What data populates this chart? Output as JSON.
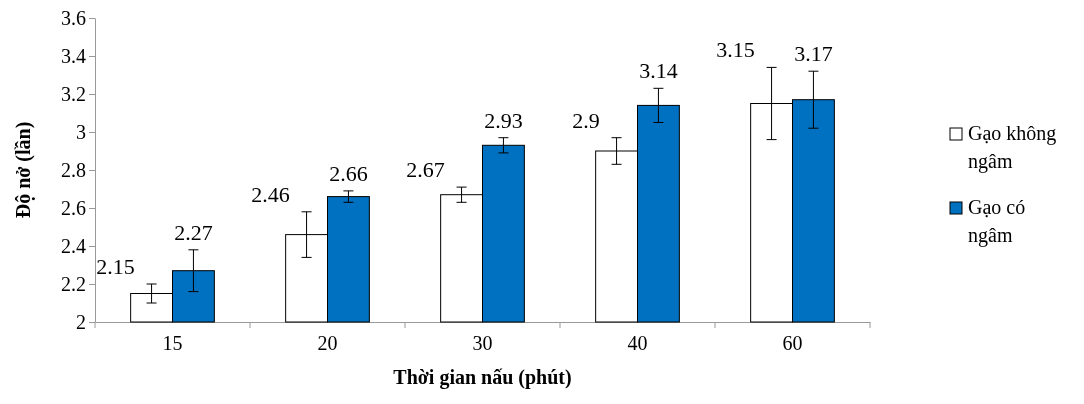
{
  "chart_data": {
    "type": "bar",
    "xlabel": "Thời gian nấu (phút)",
    "ylabel": "Độ nở (lần)",
    "categories": [
      "15",
      "20",
      "30",
      "40",
      "60"
    ],
    "series": [
      {
        "name": "Gạo không ngâm",
        "color": "#ffffff",
        "values": [
          2.15,
          2.46,
          2.67,
          2.9,
          3.15
        ],
        "errors": [
          0.05,
          0.12,
          0.04,
          0.07,
          0.19
        ]
      },
      {
        "name": "Gạo có ngâm",
        "color": "#0070c0",
        "values": [
          2.27,
          2.66,
          2.93,
          3.14,
          3.17
        ],
        "errors": [
          0.11,
          0.03,
          0.04,
          0.09,
          0.15
        ]
      }
    ],
    "ylim": [
      2,
      3.6
    ],
    "yticks": [
      2,
      2.2,
      2.4,
      2.6,
      2.8,
      3,
      3.2,
      3.4,
      3.6
    ],
    "data_labels": true,
    "legend": "right",
    "grid": false
  }
}
